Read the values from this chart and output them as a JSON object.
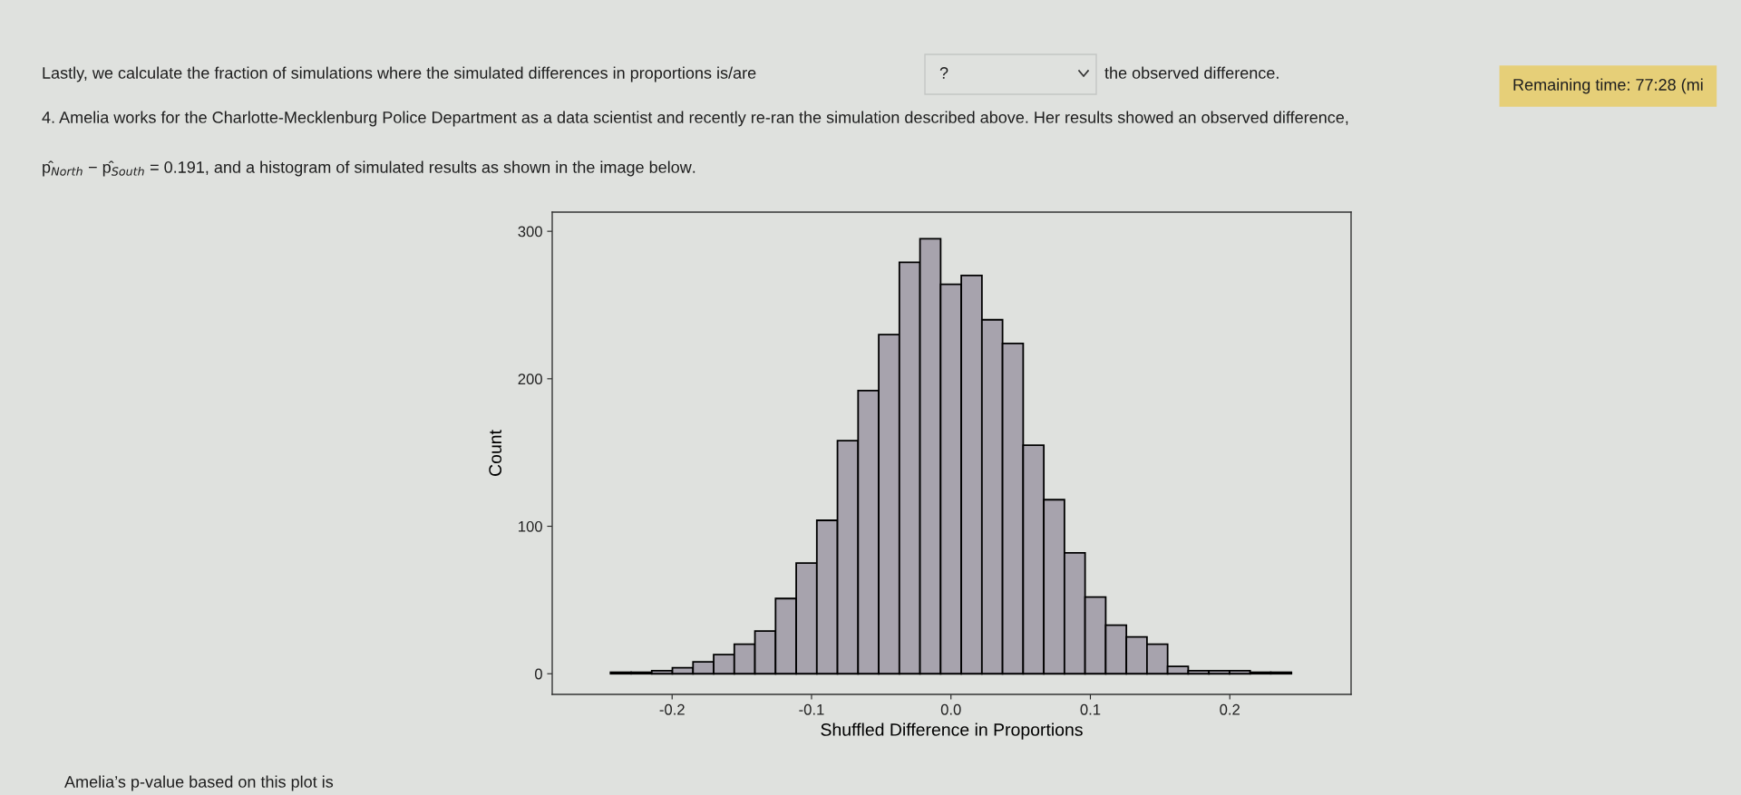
{
  "chart_data": {
    "type": "histogram",
    "xlabel": "Shuffled Difference in Proportions",
    "ylabel": "Count",
    "bins": [
      -0.2442,
      -0.2294,
      -0.2146,
      -0.1998,
      -0.185,
      -0.1702,
      -0.1554,
      -0.1406,
      -0.1258,
      -0.111,
      -0.0962,
      -0.0814,
      -0.0666,
      -0.0518,
      -0.037,
      -0.0222,
      -0.0074,
      0.0074,
      0.0222,
      0.037,
      0.0518,
      0.0666,
      0.0814,
      0.0962,
      0.111,
      0.1258,
      0.1406,
      0.1554,
      0.1702,
      0.185,
      0.1998,
      0.2146,
      0.2294,
      0.2442
    ],
    "values": [
      1,
      1,
      2,
      4,
      8,
      13,
      20,
      29,
      51,
      75,
      104,
      158,
      192,
      230,
      279,
      295,
      264,
      270,
      240,
      224,
      155,
      118,
      82,
      52,
      33,
      25,
      20,
      5,
      2,
      2,
      2,
      1,
      1
    ],
    "color": "#a7a3ad",
    "xlim": [
      -0.286,
      0.287
    ],
    "xticks": [
      {
        "value": -0.2,
        "label": "-0.2"
      },
      {
        "value": -0.1,
        "label": "-0.1"
      },
      {
        "value": 0,
        "label": "0.0"
      },
      {
        "value": 0.1,
        "label": "0.1"
      },
      {
        "value": 0.2,
        "label": "0.2"
      }
    ],
    "ylim": [
      -14,
      313
    ],
    "yticks": [
      0,
      100,
      200,
      300
    ],
    "annotations": [
      "Lastly, we calculate the fraction of simulations where the simulated differences in proportions is/are",
      "?",
      "the observed difference.",
      "Remaining time: 77:28 (mi",
      "4. Amelia works for the Charlotte-Mecklenburg Police Department as a data scientist and recently re-ran the simulation described above. Her results showed an observed difference,",
      "p̂$_{North}$ − p̂$_{South}$ = 0.191, and a histogram of simulated results as shown in the image below.",
      "Amelia’s p-value based on this plot is"
    ]
  }
}
